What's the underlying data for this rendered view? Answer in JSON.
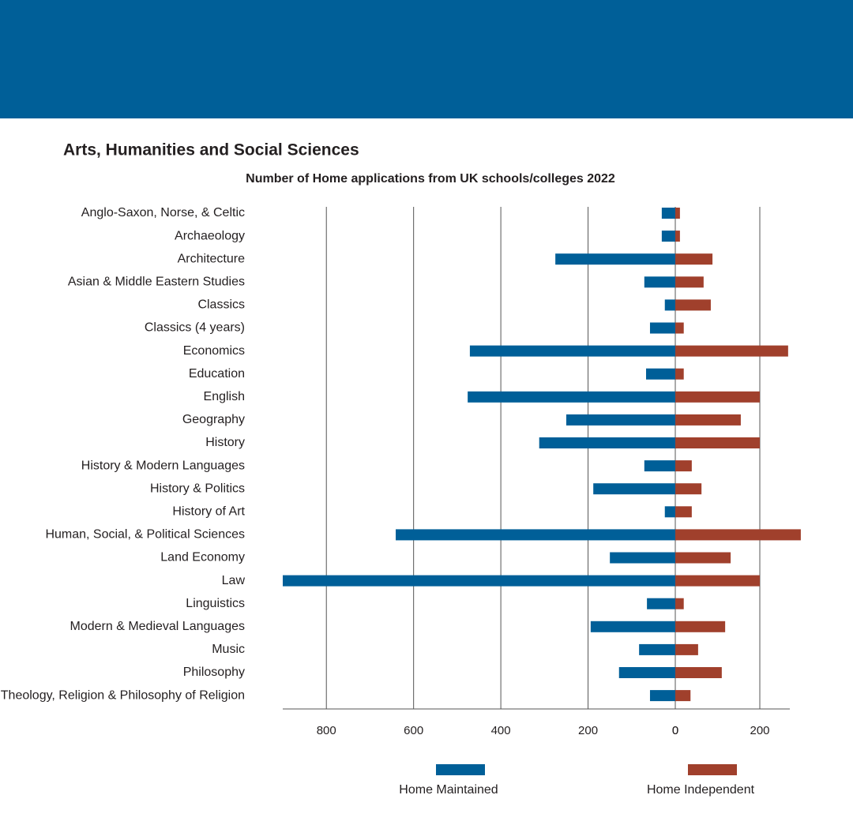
{
  "chart_data": {
    "type": "butterfly",
    "section_title": "Arts, Humanities and Social Sciences",
    "title": "Number of Home applications from UK schools/colleges 2022",
    "categories": [
      "Anglo-Saxon, Norse, & Celtic",
      "Archaeology",
      "Architecture",
      "Asian & Middle Eastern Studies",
      "Classics",
      "Classics (4 years)",
      "Economics",
      "Education",
      "English",
      "Geography",
      "History",
      "History & Modern Languages",
      "History & Politics",
      "History of Art",
      "Human, Social, & Political Sciences",
      "Land Economy",
      "Law",
      "Linguistics",
      "Modern & Medieval Languages",
      "Music",
      "Philosophy",
      "Theology, Religion & Philosophy of Religion"
    ],
    "series": [
      {
        "name": "Home Maintained",
        "color": "#005f98",
        "side": "left",
        "values": [
          31,
          31,
          275,
          71,
          24,
          58,
          471,
          67,
          476,
          250,
          312,
          71,
          188,
          24,
          641,
          150,
          900,
          65,
          194,
          83,
          129,
          58
        ]
      },
      {
        "name": "Home Independent",
        "color": "#a0402c",
        "side": "right",
        "values": [
          11,
          11,
          88,
          67,
          84,
          20,
          267,
          20,
          200,
          155,
          200,
          39,
          62,
          39,
          297,
          131,
          200,
          20,
          118,
          54,
          110,
          36
        ]
      }
    ],
    "xlim_left": [
      0,
      900
    ],
    "xticks_left": [
      0,
      200,
      400,
      600,
      800
    ],
    "xlim_right": [
      0,
      271
    ],
    "xticks_right": [
      0,
      200
    ],
    "grid": true
  }
}
